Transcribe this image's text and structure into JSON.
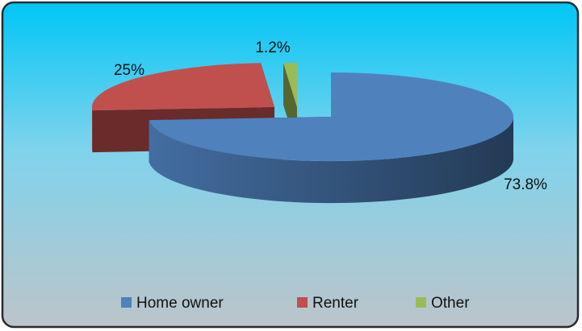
{
  "chart_data": {
    "type": "pie",
    "categories": [
      "Home owner",
      "Renter",
      "Other"
    ],
    "values": [
      73.8,
      25,
      1.2
    ],
    "value_labels": [
      "73.8%",
      "25%",
      "1.2%"
    ],
    "colors": [
      "#4f81bd",
      "#c0504d",
      "#9bbb59"
    ],
    "legend": "bottom"
  }
}
